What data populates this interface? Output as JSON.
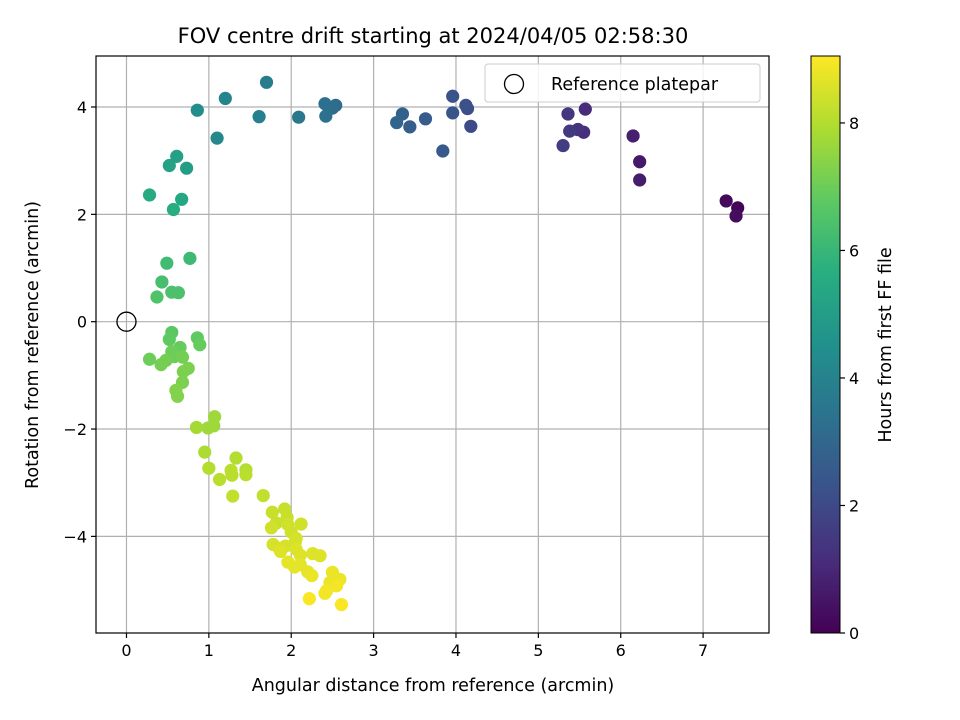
{
  "chart_data": {
    "type": "scatter",
    "title": "FOV centre drift starting at 2024/04/05 02:58:30",
    "xlabel": "Angular distance from reference (arcmin)",
    "ylabel": "Rotation from reference (arcmin)",
    "xlim": [
      -0.37,
      7.8
    ],
    "ylim": [
      -5.8,
      4.95
    ],
    "xticks": [
      0,
      1,
      2,
      3,
      4,
      5,
      6,
      7
    ],
    "yticks": [
      -4,
      -2,
      0,
      2,
      4
    ],
    "xtick_labels": [
      "0",
      "1",
      "2",
      "3",
      "4",
      "5",
      "6",
      "7"
    ],
    "ytick_labels": [
      "−4",
      "−2",
      "0",
      "2",
      "4"
    ],
    "grid": true,
    "legend": {
      "position": "top-right",
      "entries": [
        "Reference platepar"
      ]
    },
    "reference_point": {
      "x": 0,
      "y": 0,
      "label": "Reference platepar"
    },
    "colorbar": {
      "label": "Hours from first FF file",
      "colormap": "viridis",
      "range": [
        0,
        9.05
      ],
      "ticks": [
        0,
        2,
        4,
        6,
        8
      ],
      "tick_labels": [
        "0",
        "2",
        "4",
        "6",
        "8"
      ]
    },
    "series": [
      {
        "color_by": "hours",
        "points": [
          {
            "x": 7.42,
            "y": 2.12,
            "c": 0.1
          },
          {
            "x": 7.28,
            "y": 2.25,
            "c": 0.2
          },
          {
            "x": 7.4,
            "y": 1.97,
            "c": 0.3
          },
          {
            "x": 6.23,
            "y": 2.98,
            "c": 0.6
          },
          {
            "x": 6.23,
            "y": 2.64,
            "c": 0.7
          },
          {
            "x": 6.15,
            "y": 3.46,
            "c": 0.8
          },
          {
            "x": 5.57,
            "y": 3.96,
            "c": 1.1
          },
          {
            "x": 5.55,
            "y": 3.53,
            "c": 1.2
          },
          {
            "x": 5.48,
            "y": 3.58,
            "c": 1.3
          },
          {
            "x": 5.36,
            "y": 3.87,
            "c": 1.4
          },
          {
            "x": 5.38,
            "y": 3.55,
            "c": 1.5
          },
          {
            "x": 5.3,
            "y": 3.28,
            "c": 1.6
          },
          {
            "x": 4.18,
            "y": 3.64,
            "c": 2.0
          },
          {
            "x": 4.14,
            "y": 3.97,
            "c": 2.1
          },
          {
            "x": 4.12,
            "y": 4.03,
            "c": 2.2
          },
          {
            "x": 3.96,
            "y": 4.2,
            "c": 2.3
          },
          {
            "x": 3.96,
            "y": 3.89,
            "c": 2.4
          },
          {
            "x": 3.84,
            "y": 3.18,
            "c": 2.5
          },
          {
            "x": 3.63,
            "y": 3.78,
            "c": 2.6
          },
          {
            "x": 3.44,
            "y": 3.63,
            "c": 2.7
          },
          {
            "x": 3.35,
            "y": 3.87,
            "c": 2.8
          },
          {
            "x": 3.28,
            "y": 3.71,
            "c": 2.9
          },
          {
            "x": 2.54,
            "y": 4.03,
            "c": 3.1
          },
          {
            "x": 2.5,
            "y": 3.98,
            "c": 3.2
          },
          {
            "x": 2.41,
            "y": 4.06,
            "c": 3.3
          },
          {
            "x": 2.42,
            "y": 3.83,
            "c": 3.4
          },
          {
            "x": 2.09,
            "y": 3.81,
            "c": 3.6
          },
          {
            "x": 1.7,
            "y": 4.46,
            "c": 3.8
          },
          {
            "x": 1.61,
            "y": 3.82,
            "c": 3.9
          },
          {
            "x": 1.2,
            "y": 4.16,
            "c": 4.1
          },
          {
            "x": 1.1,
            "y": 3.42,
            "c": 4.2
          },
          {
            "x": 0.86,
            "y": 3.94,
            "c": 4.4
          },
          {
            "x": 0.73,
            "y": 2.86,
            "c": 5.0
          },
          {
            "x": 0.61,
            "y": 3.08,
            "c": 5.1
          },
          {
            "x": 0.52,
            "y": 2.91,
            "c": 5.2
          },
          {
            "x": 0.67,
            "y": 2.28,
            "c": 5.4
          },
          {
            "x": 0.28,
            "y": 2.36,
            "c": 5.5
          },
          {
            "x": 0.57,
            "y": 2.09,
            "c": 5.6
          },
          {
            "x": 0.77,
            "y": 1.18,
            "c": 6.1
          },
          {
            "x": 0.49,
            "y": 1.09,
            "c": 6.2
          },
          {
            "x": 0.43,
            "y": 0.74,
            "c": 6.3
          },
          {
            "x": 0.63,
            "y": 0.54,
            "c": 6.4
          },
          {
            "x": 0.55,
            "y": 0.55,
            "c": 6.4
          },
          {
            "x": 0.37,
            "y": 0.46,
            "c": 6.5
          },
          {
            "x": 0.55,
            "y": -0.2,
            "c": 6.7
          },
          {
            "x": 0.52,
            "y": -0.33,
            "c": 6.8
          },
          {
            "x": 0.86,
            "y": -0.3,
            "c": 6.8
          },
          {
            "x": 0.89,
            "y": -0.43,
            "c": 6.9
          },
          {
            "x": 0.65,
            "y": -0.48,
            "c": 6.9
          },
          {
            "x": 0.55,
            "y": -0.56,
            "c": 7.0
          },
          {
            "x": 0.28,
            "y": -0.7,
            "c": 7.0
          },
          {
            "x": 0.58,
            "y": -0.65,
            "c": 7.0
          },
          {
            "x": 0.68,
            "y": -0.66,
            "c": 7.1
          },
          {
            "x": 0.48,
            "y": -0.72,
            "c": 7.1
          },
          {
            "x": 0.42,
            "y": -0.8,
            "c": 7.1
          },
          {
            "x": 0.75,
            "y": -0.87,
            "c": 7.2
          },
          {
            "x": 0.69,
            "y": -0.93,
            "c": 7.2
          },
          {
            "x": 0.68,
            "y": -1.13,
            "c": 7.2
          },
          {
            "x": 0.6,
            "y": -1.28,
            "c": 7.3
          },
          {
            "x": 0.62,
            "y": -1.39,
            "c": 7.3
          },
          {
            "x": 1.07,
            "y": -1.77,
            "c": 7.7
          },
          {
            "x": 1.06,
            "y": -1.94,
            "c": 7.7
          },
          {
            "x": 0.99,
            "y": -1.98,
            "c": 7.7
          },
          {
            "x": 0.85,
            "y": -1.97,
            "c": 7.8
          },
          {
            "x": 0.95,
            "y": -2.43,
            "c": 7.9
          },
          {
            "x": 1.0,
            "y": -2.73,
            "c": 8.0
          },
          {
            "x": 1.33,
            "y": -2.54,
            "c": 8.0
          },
          {
            "x": 1.45,
            "y": -2.76,
            "c": 8.0
          },
          {
            "x": 1.27,
            "y": -2.77,
            "c": 8.1
          },
          {
            "x": 1.45,
            "y": -2.85,
            "c": 8.1
          },
          {
            "x": 1.28,
            "y": -2.86,
            "c": 8.1
          },
          {
            "x": 1.13,
            "y": -2.94,
            "c": 8.1
          },
          {
            "x": 1.29,
            "y": -3.25,
            "c": 8.2
          },
          {
            "x": 1.66,
            "y": -3.24,
            "c": 8.2
          },
          {
            "x": 1.77,
            "y": -3.55,
            "c": 8.3
          },
          {
            "x": 1.92,
            "y": -3.49,
            "c": 8.3
          },
          {
            "x": 1.95,
            "y": -3.65,
            "c": 8.3
          },
          {
            "x": 1.82,
            "y": -3.75,
            "c": 8.3
          },
          {
            "x": 1.96,
            "y": -3.78,
            "c": 8.4
          },
          {
            "x": 2.12,
            "y": -3.77,
            "c": 8.4
          },
          {
            "x": 1.76,
            "y": -3.84,
            "c": 8.4
          },
          {
            "x": 2.0,
            "y": -3.92,
            "c": 8.4
          },
          {
            "x": 2.06,
            "y": -4.04,
            "c": 8.5
          },
          {
            "x": 2.05,
            "y": -4.1,
            "c": 8.5
          },
          {
            "x": 1.78,
            "y": -4.15,
            "c": 8.5
          },
          {
            "x": 1.93,
            "y": -4.18,
            "c": 8.5
          },
          {
            "x": 1.85,
            "y": -4.22,
            "c": 8.5
          },
          {
            "x": 2.06,
            "y": -4.24,
            "c": 8.6
          },
          {
            "x": 1.87,
            "y": -4.28,
            "c": 8.6
          },
          {
            "x": 2.11,
            "y": -4.35,
            "c": 8.6
          },
          {
            "x": 2.26,
            "y": -4.32,
            "c": 8.6
          },
          {
            "x": 2.35,
            "y": -4.36,
            "c": 8.6
          },
          {
            "x": 1.96,
            "y": -4.48,
            "c": 8.7
          },
          {
            "x": 2.11,
            "y": -4.53,
            "c": 8.7
          },
          {
            "x": 2.04,
            "y": -4.57,
            "c": 8.7
          },
          {
            "x": 2.2,
            "y": -4.66,
            "c": 8.7
          },
          {
            "x": 2.25,
            "y": -4.73,
            "c": 8.8
          },
          {
            "x": 2.5,
            "y": -4.67,
            "c": 8.8
          },
          {
            "x": 2.59,
            "y": -4.8,
            "c": 8.8
          },
          {
            "x": 2.47,
            "y": -4.86,
            "c": 8.8
          },
          {
            "x": 2.55,
            "y": -4.92,
            "c": 8.9
          },
          {
            "x": 2.43,
            "y": -5.01,
            "c": 8.9
          },
          {
            "x": 2.41,
            "y": -5.06,
            "c": 8.9
          },
          {
            "x": 2.22,
            "y": -5.16,
            "c": 9.0
          },
          {
            "x": 2.61,
            "y": -5.27,
            "c": 9.0
          }
        ]
      }
    ]
  }
}
